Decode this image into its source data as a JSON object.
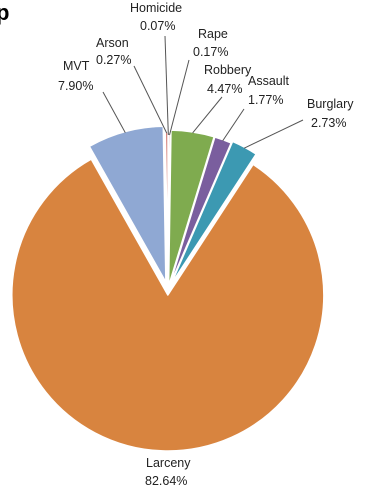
{
  "chart_data": {
    "type": "pie",
    "title": "p",
    "categories": [
      "Homicide",
      "Rape",
      "Robbery",
      "Assault",
      "Burglary",
      "Larceny",
      "MVT",
      "Arson"
    ],
    "values": [
      0.07,
      0.17,
      4.47,
      1.77,
      2.73,
      82.64,
      7.9,
      0.27
    ],
    "value_labels": [
      "0.07%",
      "0.17%",
      "4.47%",
      "1.77%",
      "2.73%",
      "82.64%",
      "7.90%",
      "0.27%"
    ],
    "exploded": true,
    "colors": [
      "#c0504d",
      "#c0504d",
      "#7fab4f",
      "#7a5e9e",
      "#3c99b2",
      "#d8843f",
      "#8fa8d3",
      "#d0736b"
    ],
    "legend": "none"
  }
}
